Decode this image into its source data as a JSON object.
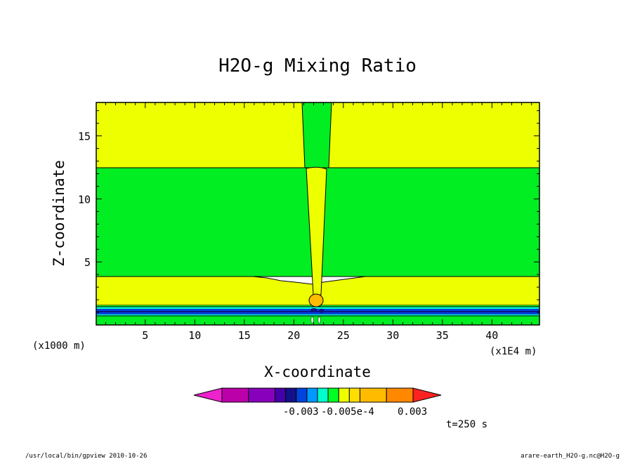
{
  "chart_data": {
    "type": "heatmap",
    "title": "H2O-g Mixing Ratio",
    "xlabel": "X-coordinate",
    "ylabel": "Z-coordinate",
    "x_unit": "(x1E4 m)",
    "y_unit": "(x1000 m)",
    "xlim": [
      0.05,
      44.8
    ],
    "ylim": [
      0.0,
      17.65
    ],
    "x_ticks": [
      "5",
      "10",
      "15",
      "20",
      "25",
      "30",
      "35",
      "40"
    ],
    "y_ticks": [
      "5",
      "10",
      "15"
    ],
    "colorbar": {
      "colors": [
        "#ee22cc",
        "#bb00aa",
        "#8800bb",
        "#4400aa",
        "#111188",
        "#0044dd",
        "#0099ff",
        "#00ffcc",
        "#00ff22",
        "#eeff00",
        "#ffdd00",
        "#ffbb00",
        "#ff8800",
        "#ff2222"
      ],
      "labels": [
        "-0.003",
        "-0.005e-4",
        "0.003"
      ]
    },
    "annotation": "t=250 s",
    "colors": {
      "yellow": "#eeff00",
      "green": "#00ee22",
      "blue": "#0044dd",
      "navy": "#111188",
      "cyan": "#00ffcc",
      "orange": "#ffbb00"
    }
  },
  "footer": {
    "left": "/usr/local/bin/gpview  2010-10-26",
    "right": "arare-earth_H2O-g.nc@H2O-g"
  }
}
